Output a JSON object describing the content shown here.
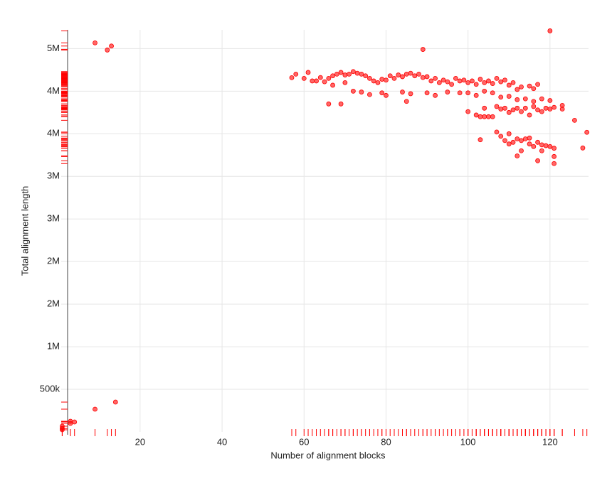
{
  "chart_data": {
    "type": "scatter",
    "x_label": "Number of alignment blocks",
    "y_label": "Total alignment length",
    "color": "#ff0000",
    "grid": true,
    "rug": true,
    "xlim": [
      0.75,
      129.4
    ],
    "ylim": [
      0,
      4720000
    ],
    "xticks": [
      20,
      40,
      60,
      80,
      100,
      120
    ],
    "yticks": [
      {
        "value": 500000,
        "label": "500k"
      },
      {
        "value": 1000000,
        "label": "1M"
      },
      {
        "value": 1500000,
        "label": "2M"
      },
      {
        "value": 2000000,
        "label": "2M"
      },
      {
        "value": 2500000,
        "label": "3M"
      },
      {
        "value": 3000000,
        "label": "3M"
      },
      {
        "value": 3500000,
        "label": "4M"
      },
      {
        "value": 4000000,
        "label": "4M"
      },
      {
        "value": 4500000,
        "label": "5M"
      }
    ],
    "x": [
      58,
      60,
      61,
      62,
      63,
      64,
      65,
      66,
      67,
      68,
      69,
      70,
      71,
      72,
      73,
      74,
      75,
      76,
      77,
      78,
      79,
      80,
      81,
      82,
      83,
      84,
      85,
      86,
      87,
      88,
      89,
      90,
      91,
      92,
      93,
      94,
      95,
      96,
      97,
      98,
      99,
      100,
      101,
      102,
      103,
      104,
      105,
      106,
      107,
      108,
      109,
      110,
      111,
      112,
      113,
      115,
      116,
      117,
      67,
      70,
      72,
      74,
      76,
      79,
      80,
      84,
      86,
      90,
      92,
      95,
      98,
      100,
      102,
      104,
      106,
      108,
      110,
      112,
      114,
      116,
      118,
      120,
      66,
      69,
      85,
      100,
      102,
      103,
      104,
      105,
      106,
      107,
      108,
      109,
      110,
      111,
      112,
      113,
      114,
      115,
      116,
      117,
      118,
      119,
      120,
      121,
      104,
      103,
      107,
      108,
      109,
      110,
      111,
      112,
      113,
      114,
      115,
      116,
      117,
      118,
      119,
      120,
      121,
      113,
      115,
      110,
      118,
      9,
      12,
      13,
      89,
      120,
      57,
      129,
      128,
      126,
      123,
      123,
      121,
      121,
      117,
      112,
      9,
      14,
      3,
      3,
      4,
      1,
      1,
      1
    ],
    "values": [
      4200000.0,
      4150000.0,
      4220000.0,
      4120000.0,
      4120000.0,
      4160000.0,
      4110000.0,
      4150000.0,
      4180000.0,
      4200000.0,
      4220000.0,
      4190000.0,
      4200000.0,
      4230000.0,
      4210000.0,
      4200000.0,
      4180000.0,
      4150000.0,
      4120000.0,
      4100000.0,
      4140000.0,
      4130000.0,
      4180000.0,
      4150000.0,
      4190000.0,
      4170000.0,
      4200000.0,
      4210000.0,
      4180000.0,
      4200000.0,
      4160000.0,
      4170000.0,
      4120000.0,
      4150000.0,
      4100000.0,
      4130000.0,
      4110000.0,
      4080000.0,
      4150000.0,
      4120000.0,
      4130000.0,
      4100000.0,
      4120000.0,
      4080000.0,
      4140000.0,
      4100000.0,
      4120000.0,
      4090000.0,
      4150000.0,
      4110000.0,
      4130000.0,
      4070000.0,
      4100000.0,
      4020000.0,
      4050000.0,
      4060000.0,
      4030000.0,
      4080000.0,
      4070000.0,
      4100000.0,
      4000000.0,
      3990000.0,
      3960000.0,
      3980000.0,
      3950000.0,
      3990000.0,
      3970000.0,
      3980000.0,
      3950000.0,
      3990000.0,
      3980000.0,
      3980000.0,
      3950000.0,
      4000000.0,
      3980000.0,
      3930000.0,
      3940000.0,
      3900000.0,
      3910000.0,
      3880000.0,
      3910000.0,
      3890000.0,
      3850000.0,
      3850000.0,
      3880000.0,
      3760000.0,
      3720000.0,
      3700000.0,
      3700000.0,
      3700000.0,
      3700000.0,
      3820000.0,
      3790000.0,
      3800000.0,
      3750000.0,
      3780000.0,
      3800000.0,
      3760000.0,
      3800000.0,
      3720000.0,
      3820000.0,
      3780000.0,
      3760000.0,
      3800000.0,
      3790000.0,
      3810000.0,
      3800000.0,
      3430000.0,
      3520000.0,
      3470000.0,
      3420000.0,
      3380000.0,
      3400000.0,
      3440000.0,
      3420000.0,
      3440000.0,
      3380000.0,
      3350000.0,
      3400000.0,
      3370000.0,
      3360000.0,
      3350000.0,
      3330000.0,
      3300000.0,
      3450000.0,
      3500000.0,
      3300000.0,
      4567000.0,
      4483000.0,
      4530000.0,
      4490000.0,
      4708000.0,
      4158000.0,
      3517000.0,
      3333000.0,
      3658000.0,
      3833000.0,
      3790000.0,
      3150000.0,
      3233000.0,
      3183000.0,
      3240000.0,
      267000,
      350000,
      125000,
      100000,
      117000,
      25000,
      67000,
      40000
    ]
  }
}
